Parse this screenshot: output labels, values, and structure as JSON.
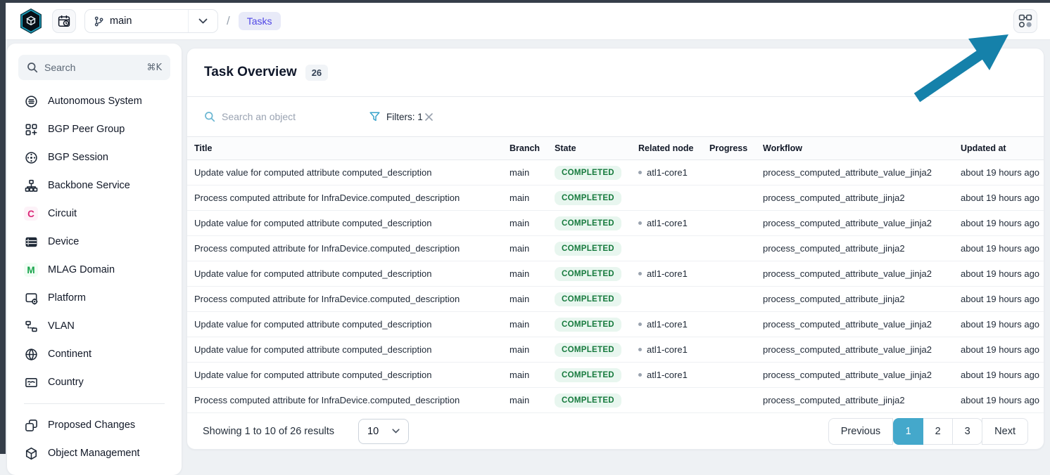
{
  "topbar": {
    "branch_selector": {
      "value": "main"
    },
    "breadcrumb": {
      "separator": "/",
      "current": "Tasks"
    }
  },
  "sidebar": {
    "search": {
      "placeholder": "Search",
      "shortcut": "⌘K"
    },
    "items": [
      {
        "label": "Autonomous System",
        "icon": "autonomous-system-icon"
      },
      {
        "label": "BGP Peer Group",
        "icon": "bgp-peer-group-icon"
      },
      {
        "label": "BGP Session",
        "icon": "bgp-session-icon"
      },
      {
        "label": "Backbone Service",
        "icon": "backbone-service-icon"
      },
      {
        "label": "Circuit",
        "icon": "letter-badge",
        "letter": "C",
        "letter_color": "#db2777",
        "letter_bg": "#fdf2f8"
      },
      {
        "label": "Device",
        "icon": "device-icon"
      },
      {
        "label": "MLAG Domain",
        "icon": "letter-badge",
        "letter": "M",
        "letter_color": "#16a34a",
        "letter_bg": "#f0fdf4"
      },
      {
        "label": "Platform",
        "icon": "platform-icon"
      },
      {
        "label": "VLAN",
        "icon": "vlan-icon"
      },
      {
        "label": "Continent",
        "icon": "continent-icon"
      },
      {
        "label": "Country",
        "icon": "country-icon"
      }
    ],
    "secondary_items": [
      {
        "label": "Proposed Changes",
        "icon": "proposed-changes-icon"
      },
      {
        "label": "Object Management",
        "icon": "object-management-icon"
      }
    ]
  },
  "main": {
    "title": "Task Overview",
    "count": "26",
    "toolbar": {
      "search_placeholder": "Search an object",
      "filters_label": "Filters: 1"
    },
    "table": {
      "columns": [
        "Title",
        "Branch",
        "State",
        "Related node",
        "Progress",
        "Workflow",
        "Updated at"
      ],
      "rows": [
        {
          "title": "Update value for computed attribute computed_description",
          "branch": "main",
          "state": "COMPLETED",
          "related_node": "atl1-core1",
          "progress": "",
          "workflow": "process_computed_attribute_value_jinja2",
          "updated_at": "about 19 hours ago"
        },
        {
          "title": "Process computed attribute for InfraDevice.computed_description",
          "branch": "main",
          "state": "COMPLETED",
          "related_node": "",
          "progress": "",
          "workflow": "process_computed_attribute_jinja2",
          "updated_at": "about 19 hours ago"
        },
        {
          "title": "Update value for computed attribute computed_description",
          "branch": "main",
          "state": "COMPLETED",
          "related_node": "atl1-core1",
          "progress": "",
          "workflow": "process_computed_attribute_value_jinja2",
          "updated_at": "about 19 hours ago"
        },
        {
          "title": "Process computed attribute for InfraDevice.computed_description",
          "branch": "main",
          "state": "COMPLETED",
          "related_node": "",
          "progress": "",
          "workflow": "process_computed_attribute_jinja2",
          "updated_at": "about 19 hours ago"
        },
        {
          "title": "Update value for computed attribute computed_description",
          "branch": "main",
          "state": "COMPLETED",
          "related_node": "atl1-core1",
          "progress": "",
          "workflow": "process_computed_attribute_value_jinja2",
          "updated_at": "about 19 hours ago"
        },
        {
          "title": "Process computed attribute for InfraDevice.computed_description",
          "branch": "main",
          "state": "COMPLETED",
          "related_node": "",
          "progress": "",
          "workflow": "process_computed_attribute_jinja2",
          "updated_at": "about 19 hours ago"
        },
        {
          "title": "Update value for computed attribute computed_description",
          "branch": "main",
          "state": "COMPLETED",
          "related_node": "atl1-core1",
          "progress": "",
          "workflow": "process_computed_attribute_value_jinja2",
          "updated_at": "about 19 hours ago"
        },
        {
          "title": "Update value for computed attribute computed_description",
          "branch": "main",
          "state": "COMPLETED",
          "related_node": "atl1-core1",
          "progress": "",
          "workflow": "process_computed_attribute_value_jinja2",
          "updated_at": "about 19 hours ago"
        },
        {
          "title": "Update value for computed attribute computed_description",
          "branch": "main",
          "state": "COMPLETED",
          "related_node": "atl1-core1",
          "progress": "",
          "workflow": "process_computed_attribute_value_jinja2",
          "updated_at": "about 19 hours ago"
        },
        {
          "title": "Process computed attribute for InfraDevice.computed_description",
          "branch": "main",
          "state": "COMPLETED",
          "related_node": "",
          "progress": "",
          "workflow": "process_computed_attribute_jinja2",
          "updated_at": "about 19 hours ago"
        }
      ]
    },
    "footer": {
      "results_text": "Showing 1 to 10 of 26 results",
      "page_size": "10",
      "previous_label": "Previous",
      "pages": [
        "1",
        "2",
        "3"
      ],
      "active_page": "1",
      "next_label": "Next"
    }
  },
  "colors": {
    "annotation_arrow": "#1581aa",
    "pagination_active": "#44a8cb",
    "completed_bg": "#e8f6ef",
    "completed_text": "#167a3d",
    "breadcrumb_bg": "#e8eaf8",
    "breadcrumb_text": "#4f46e5",
    "accent_teal": "#3aa4cc"
  },
  "annotation": {
    "type": "arrow",
    "points_to": "schema-icon-button"
  }
}
